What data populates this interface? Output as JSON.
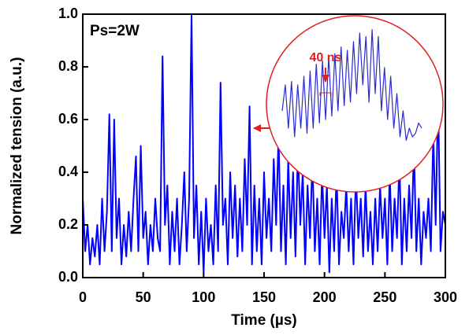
{
  "chart_data": [
    {
      "type": "line",
      "xlabel": "Time (µs)",
      "ylabel": "Normalized tension (a.u.)",
      "annotation": "Ps=2W",
      "color": "#0000ff",
      "x": [
        0,
        2,
        4,
        6,
        8,
        10,
        12,
        14,
        16,
        18,
        20,
        22,
        24,
        26,
        28,
        30,
        32,
        34,
        36,
        38,
        40,
        42,
        44,
        46,
        48,
        50,
        52,
        54,
        56,
        58,
        60,
        62,
        64,
        66,
        68,
        70,
        72,
        74,
        76,
        78,
        80,
        82,
        84,
        86,
        88,
        90,
        92,
        94,
        96,
        98,
        100,
        102,
        104,
        106,
        108,
        110,
        112,
        114,
        116,
        118,
        120,
        122,
        124,
        126,
        128,
        130,
        132,
        134,
        136,
        138,
        140,
        142,
        144,
        146,
        148,
        150,
        152,
        154,
        156,
        158,
        160,
        162,
        164,
        166,
        168,
        170,
        172,
        174,
        176,
        178,
        180,
        182,
        184,
        186,
        188,
        190,
        192,
        194,
        196,
        198,
        200,
        202,
        204,
        206,
        208,
        210,
        212,
        214,
        216,
        218,
        220,
        222,
        224,
        226,
        228,
        230,
        232,
        234,
        236,
        238,
        240,
        242,
        244,
        246,
        248,
        250,
        252,
        254,
        256,
        258,
        260,
        262,
        264,
        266,
        268,
        270,
        272,
        274,
        276,
        278,
        280,
        282,
        284,
        286,
        288,
        290,
        292,
        294,
        296,
        298,
        300
      ],
      "values": [
        0.3,
        0.1,
        0.2,
        0.05,
        0.15,
        0.08,
        0.2,
        0.05,
        0.3,
        0.1,
        0.25,
        0.62,
        0.1,
        0.6,
        0.15,
        0.3,
        0.05,
        0.2,
        0.08,
        0.25,
        0.1,
        0.3,
        0.46,
        0.1,
        0.5,
        0.15,
        0.25,
        0.05,
        0.2,
        0.1,
        0.3,
        0.15,
        0.1,
        0.84,
        0.2,
        0.35,
        0.05,
        0.25,
        0.1,
        0.3,
        0.05,
        0.2,
        0.4,
        0.1,
        0.3,
        1.0,
        0.15,
        0.35,
        0.05,
        0.25,
        0.02,
        0.3,
        0.1,
        0.2,
        0.05,
        0.35,
        0.1,
        0.74,
        0.2,
        0.3,
        0.05,
        0.4,
        0.15,
        0.35,
        0.08,
        0.3,
        0.1,
        0.45,
        0.2,
        0.65,
        0.05,
        0.35,
        0.1,
        0.3,
        0.05,
        0.4,
        0.15,
        0.3,
        0.1,
        0.45,
        0.2,
        0.55,
        0.1,
        0.35,
        0.05,
        0.45,
        0.15,
        0.4,
        0.08,
        0.5,
        0.2,
        0.4,
        0.05,
        0.35,
        0.15,
        0.45,
        0.1,
        0.3,
        0.05,
        0.4,
        0.15,
        0.35,
        0.02,
        0.3,
        0.1,
        0.4,
        0.05,
        0.25,
        0.15,
        0.35,
        0.1,
        0.3,
        0.05,
        0.4,
        0.15,
        0.3,
        0.08,
        0.35,
        0.1,
        0.25,
        0.05,
        0.3,
        0.1,
        0.35,
        0.15,
        0.3,
        0.05,
        0.4,
        0.1,
        0.3,
        0.15,
        0.45,
        0.05,
        0.3,
        0.1,
        0.35,
        0.15,
        0.5,
        0.1,
        0.3,
        0.05,
        0.25,
        0.15,
        0.3,
        0.1,
        0.55,
        0.2,
        0.7,
        0.1,
        0.25,
        0.2
      ],
      "xlim": [
        0,
        300
      ],
      "ylim": [
        0,
        1
      ],
      "xticks": [
        0,
        50,
        100,
        150,
        200,
        250,
        300
      ],
      "yticks": [
        {
          "value": 0,
          "label": "0.0"
        },
        0.2,
        0.4,
        0.6,
        0.8,
        {
          "value": 1,
          "label": "1.0"
        }
      ]
    },
    {
      "type": "line",
      "annotation": "40 ns",
      "color": "#2a2ad0",
      "x": [
        0,
        10,
        20,
        30,
        40,
        50,
        60,
        70,
        80,
        90,
        100,
        110,
        120,
        130,
        140,
        150,
        160,
        170,
        180,
        190,
        200,
        210,
        220,
        230,
        240,
        250,
        260,
        270,
        280,
        290,
        300,
        310,
        320,
        330,
        340,
        350,
        360,
        370,
        380,
        390,
        400,
        410,
        420,
        430,
        440,
        450
      ],
      "values": [
        0.45,
        0.6,
        0.35,
        0.62,
        0.3,
        0.6,
        0.35,
        0.65,
        0.32,
        0.68,
        0.35,
        0.72,
        0.38,
        0.74,
        0.4,
        0.76,
        0.42,
        0.78,
        0.45,
        0.82,
        0.48,
        0.8,
        0.5,
        0.85,
        0.55,
        0.9,
        0.6,
        0.88,
        0.5,
        0.92,
        0.55,
        0.88,
        0.45,
        0.7,
        0.4,
        0.65,
        0.35,
        0.55,
        0.3,
        0.45,
        0.28,
        0.35,
        0.3,
        0.32,
        0.38,
        0.35
      ],
      "xlim": [
        0,
        450
      ],
      "ylim": [
        0,
        1
      ]
    }
  ]
}
